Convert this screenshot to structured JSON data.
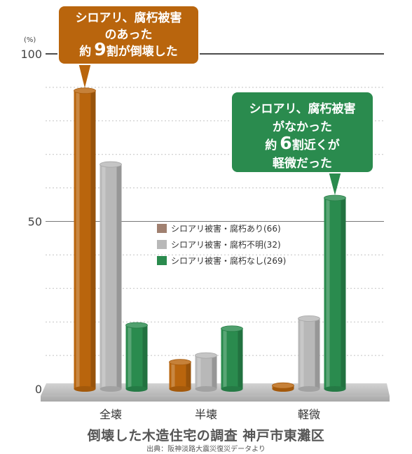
{
  "chart_data": {
    "type": "bar",
    "unit_label": "(%)",
    "yticks": [
      "0",
      "50",
      "100"
    ],
    "ylim": [
      0,
      100
    ],
    "grid": "dotted",
    "legend_placement": "center",
    "categories": [
      "全壊",
      "半壊",
      "軽微"
    ],
    "series": [
      {
        "name": "シロアリ被害・腐朽あり(66)",
        "color": "#b9650d",
        "values": [
          89,
          8,
          1
        ]
      },
      {
        "name": "シロアリ被害・腐朽不明(32)",
        "color": "#b8b8b8",
        "values": [
          67,
          10,
          21
        ]
      },
      {
        "name": "シロアリ被害・腐朽なし(269)",
        "color": "#2a8b4e",
        "values": [
          19,
          18,
          57
        ]
      }
    ],
    "legend_colors": [
      "#a08070",
      "#b8b8b8",
      "#2a8b4e"
    ],
    "callouts": [
      {
        "lines": [
          [
            "シロアリ、腐朽被害"
          ],
          [
            "のあった"
          ],
          [
            "約",
            "9",
            "割が倒壊した"
          ]
        ],
        "color": "#b9650d",
        "series_index": 0,
        "category_index": 0
      },
      {
        "lines": [
          [
            "シロアリ、腐朽被害"
          ],
          [
            "がなかった"
          ],
          [
            "約",
            "6",
            "割近くが"
          ],
          [
            "軽微だった"
          ]
        ],
        "color": "#2a8b4e",
        "series_index": 2,
        "category_index": 2
      }
    ]
  },
  "caption": {
    "title": "倒壊した木造住宅の調査 神戸市東灘区",
    "source": "出典：阪神淡路大震災復災データより"
  }
}
